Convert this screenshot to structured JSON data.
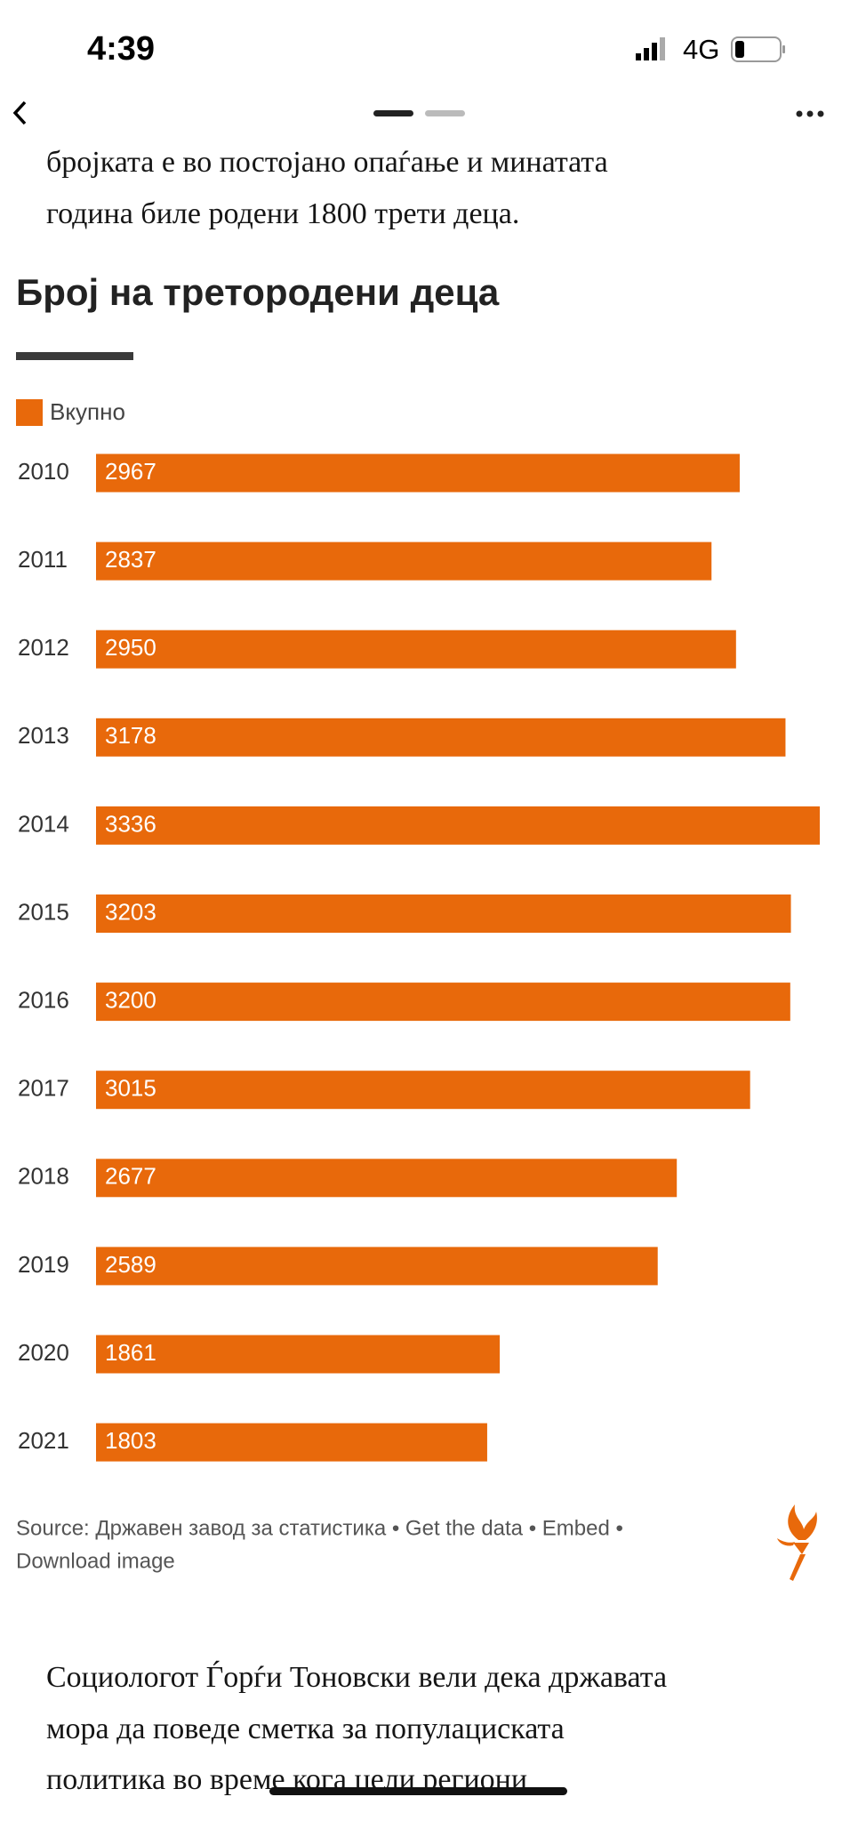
{
  "status_bar": {
    "time": "4:39",
    "network": "4G"
  },
  "article_top": {
    "lines": [
      "бројката е во постојано опаѓање и минатата",
      "година биле родени 1800 трети деца."
    ]
  },
  "chart_data": {
    "type": "bar",
    "orientation": "horizontal",
    "title": "Број на третородени  деца",
    "categories": [
      "2010",
      "2011",
      "2012",
      "2013",
      "2014",
      "2015",
      "2016",
      "2017",
      "2018",
      "2019",
      "2020",
      "2021"
    ],
    "series": [
      {
        "name": "Вкупно",
        "color": "#e8690b",
        "values": [
          2967,
          2837,
          2950,
          3178,
          3336,
          3203,
          3200,
          3015,
          2677,
          2589,
          1861,
          1803
        ]
      }
    ],
    "source_lines": [
      "Source: Државен завод за статистика • Get the data • Embed •",
      "Download image"
    ]
  },
  "article_bottom": {
    "lines": [
      "Социологот Ѓорѓи Тоновски вели дека државата",
      "мора да поведе сметка за популациската",
      "политика во време кога цели региони"
    ]
  }
}
